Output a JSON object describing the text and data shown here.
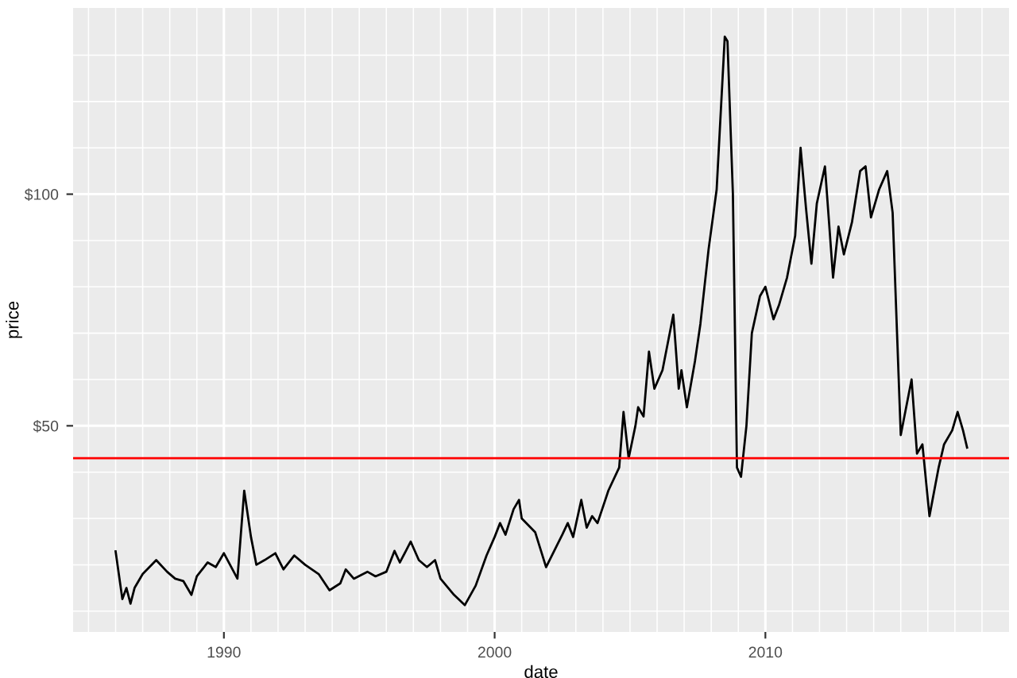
{
  "chart_data": {
    "type": "line",
    "xlabel": "date",
    "ylabel": "price",
    "x": [
      1986.0,
      1986.25,
      1986.4,
      1986.55,
      1986.7,
      1987.0,
      1987.5,
      1987.9,
      1988.2,
      1988.5,
      1988.8,
      1989.0,
      1989.4,
      1989.7,
      1990.0,
      1990.5,
      1990.75,
      1991.0,
      1991.2,
      1991.5,
      1991.9,
      1992.2,
      1992.6,
      1993.0,
      1993.5,
      1993.9,
      1994.3,
      1994.5,
      1994.8,
      1995.3,
      1995.6,
      1996.0,
      1996.3,
      1996.5,
      1996.9,
      1997.2,
      1997.5,
      1997.8,
      1998.0,
      1998.5,
      1998.9,
      1999.3,
      1999.7,
      2000.0,
      2000.2,
      2000.4,
      2000.7,
      2000.9,
      2001.0,
      2001.5,
      2001.9,
      2002.2,
      2002.5,
      2002.7,
      2002.9,
      2003.2,
      2003.4,
      2003.6,
      2003.8,
      2004.2,
      2004.6,
      2004.76,
      2004.95,
      2005.2,
      2005.3,
      2005.5,
      2005.7,
      2005.9,
      2006.2,
      2006.6,
      2006.8,
      2006.9,
      2007.1,
      2007.4,
      2007.6,
      2007.9,
      2008.2,
      2008.5,
      2008.6,
      2008.8,
      2008.95,
      2009.1,
      2009.3,
      2009.5,
      2009.8,
      2010.0,
      2010.3,
      2010.5,
      2010.8,
      2011.1,
      2011.3,
      2011.5,
      2011.7,
      2011.9,
      2012.2,
      2012.5,
      2012.7,
      2012.9,
      2013.2,
      2013.5,
      2013.7,
      2013.9,
      2014.2,
      2014.5,
      2014.7,
      2015.0,
      2015.1,
      2015.4,
      2015.6,
      2015.8,
      2016.06,
      2016.4,
      2016.6,
      2016.9,
      2017.1,
      2017.3,
      2017.45
    ],
    "series": [
      {
        "color": "#000000",
        "values": [
          22.9,
          12.6,
          15.0,
          11.6,
          15,
          18,
          21,
          18.5,
          17,
          16.5,
          13.5,
          17.5,
          20.5,
          19.5,
          22.5,
          17.0,
          36,
          26,
          20,
          21,
          22.5,
          19,
          22,
          20,
          18,
          14.5,
          16,
          19,
          17,
          18.5,
          17.5,
          18.5,
          23,
          20.5,
          25,
          21,
          19.5,
          21,
          17,
          13.5,
          11.3,
          15.5,
          22,
          26,
          29,
          26.5,
          32,
          34,
          30,
          27,
          19.5,
          23,
          26.5,
          29,
          26,
          34,
          28,
          30.5,
          29,
          36,
          41,
          53,
          43,
          50,
          54,
          52,
          66,
          58,
          62,
          74,
          58,
          62,
          54,
          64,
          72,
          88,
          101,
          134,
          133,
          100,
          41,
          39,
          50,
          70,
          78,
          80,
          73,
          76,
          82,
          91,
          110,
          97,
          85,
          98,
          106,
          82,
          93,
          87,
          94,
          105,
          106,
          95,
          101,
          105,
          96,
          48,
          51,
          60,
          44,
          46,
          30.5,
          41,
          46,
          49,
          53,
          49,
          45.3
        ]
      }
    ],
    "xlim": [
      1984.43,
      2019.0
    ],
    "xticks": [
      {
        "value": 1985,
        "label": null
      },
      {
        "value": 1986,
        "label": null
      },
      {
        "value": 1987,
        "label": null
      },
      {
        "value": 1988,
        "label": null
      },
      {
        "value": 1989,
        "label": null
      },
      1990,
      {
        "value": 1991,
        "label": null
      },
      {
        "value": 1992,
        "label": null
      },
      {
        "value": 1993,
        "label": null
      },
      {
        "value": 1994,
        "label": null
      },
      {
        "value": 1995,
        "label": null
      },
      {
        "value": 1996,
        "label": null
      },
      {
        "value": 1997,
        "label": null
      },
      {
        "value": 1998,
        "label": null
      },
      {
        "value": 1999,
        "label": null
      },
      2000,
      {
        "value": 2001,
        "label": null
      },
      {
        "value": 2002,
        "label": null
      },
      {
        "value": 2003,
        "label": null
      },
      {
        "value": 2004,
        "label": null
      },
      {
        "value": 2005,
        "label": null
      },
      {
        "value": 2006,
        "label": null
      },
      {
        "value": 2007,
        "label": null
      },
      {
        "value": 2008,
        "label": null
      },
      {
        "value": 2009,
        "label": null
      },
      2010,
      {
        "value": 2011,
        "label": null
      },
      {
        "value": 2012,
        "label": null
      },
      {
        "value": 2013,
        "label": null
      },
      {
        "value": 2014,
        "label": null
      },
      {
        "value": 2015,
        "label": null
      },
      {
        "value": 2016,
        "label": null
      },
      {
        "value": 2017,
        "label": null
      },
      {
        "value": 2018,
        "label": null
      }
    ],
    "ylim": [
      5.5,
      140.2
    ],
    "yticks": [
      {
        "value": 10,
        "label": null
      },
      {
        "value": 20,
        "label": null
      },
      {
        "value": 30,
        "label": null
      },
      {
        "value": 40,
        "label": null
      },
      {
        "value": 50,
        "label": "$50"
      },
      {
        "value": 60,
        "label": null
      },
      {
        "value": 70,
        "label": null
      },
      {
        "value": 80,
        "label": null
      },
      {
        "value": 90,
        "label": null
      },
      {
        "value": 100,
        "label": "$100"
      },
      {
        "value": 110,
        "label": null
      },
      {
        "value": 120,
        "label": null
      },
      {
        "value": 130,
        "label": null
      }
    ],
    "ref_lines": [
      {
        "axis": "y",
        "value": 43,
        "color": "#ff0000"
      }
    ],
    "grid": true,
    "legend": false
  }
}
